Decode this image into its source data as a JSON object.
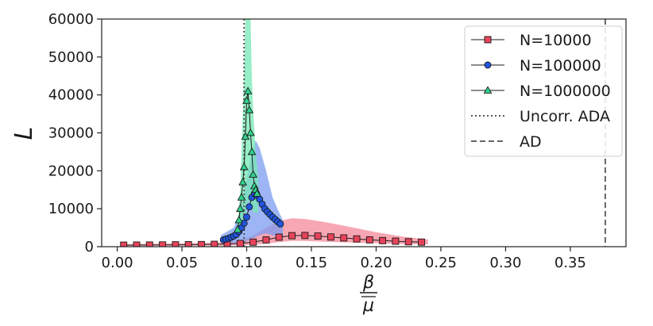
{
  "chart_data": {
    "type": "line",
    "title": "",
    "xlabel_numerator": "β",
    "xlabel_denominator": "μ",
    "ylabel": "L",
    "xlim": [
      -0.012,
      0.393
    ],
    "ylim": [
      0,
      60000
    ],
    "xticks": [
      "0.00",
      "0.05",
      "0.10",
      "0.15",
      "0.20",
      "0.25",
      "0.30",
      "0.35"
    ],
    "xtick_values": [
      0.0,
      0.05,
      0.1,
      0.15,
      0.2,
      0.25,
      0.3,
      0.35
    ],
    "yticks": [
      "0",
      "10000",
      "20000",
      "30000",
      "40000",
      "50000",
      "60000"
    ],
    "ytick_values": [
      0,
      10000,
      20000,
      30000,
      40000,
      50000,
      60000
    ],
    "grid": false,
    "legend_position": "upper-right",
    "series": [
      {
        "name": "N=10000",
        "marker": "square",
        "color": "#e8435a",
        "band_color": "#f48a9a",
        "x": [
          0.005,
          0.015,
          0.025,
          0.035,
          0.045,
          0.055,
          0.065,
          0.075,
          0.085,
          0.095,
          0.105,
          0.115,
          0.125,
          0.135,
          0.145,
          0.155,
          0.165,
          0.175,
          0.185,
          0.195,
          0.205,
          0.215,
          0.225,
          0.235
        ],
        "y": [
          400,
          420,
          440,
          460,
          490,
          520,
          560,
          620,
          700,
          850,
          1200,
          1800,
          2500,
          2900,
          2950,
          2800,
          2550,
          2300,
          2050,
          1800,
          1600,
          1450,
          1300,
          1200
        ],
        "band_x": [
          0.005,
          0.05,
          0.08,
          0.095,
          0.105,
          0.115,
          0.125,
          0.135,
          0.145,
          0.16,
          0.18,
          0.2,
          0.22,
          0.24
        ],
        "band_upper": [
          700,
          900,
          1100,
          1500,
          3000,
          5000,
          6800,
          7500,
          7300,
          6500,
          5200,
          3800,
          2700,
          1900
        ],
        "band_lower": [
          200,
          250,
          300,
          400,
          500,
          800,
          1200,
          1500,
          1500,
          1300,
          1100,
          900,
          700,
          600
        ]
      },
      {
        "name": "N=100000",
        "marker": "circle",
        "color": "#2155e0",
        "band_color": "#7c9cf0",
        "x": [
          0.082,
          0.084,
          0.086,
          0.088,
          0.09,
          0.092,
          0.094,
          0.096,
          0.098,
          0.1,
          0.102,
          0.104,
          0.106,
          0.108,
          0.11,
          0.112,
          0.114,
          0.116,
          0.118,
          0.12,
          0.122,
          0.124,
          0.126
        ],
        "y": [
          1800,
          2000,
          2200,
          2500,
          2800,
          3200,
          4000,
          5000,
          6200,
          7800,
          10500,
          13000,
          14000,
          13500,
          12500,
          11200,
          10000,
          9200,
          8500,
          7800,
          7200,
          6600,
          6000
        ],
        "band_x": [
          0.08,
          0.09,
          0.095,
          0.1,
          0.104,
          0.107,
          0.11,
          0.115,
          0.12,
          0.125,
          0.128
        ],
        "band_upper": [
          3000,
          5000,
          9000,
          18000,
          25000,
          28000,
          26000,
          20000,
          13000,
          9000,
          7000
        ],
        "band_lower": [
          1000,
          1000,
          1000,
          1500,
          2000,
          2500,
          3000,
          3500,
          3000,
          2500,
          2500
        ]
      },
      {
        "name": "N=1000000",
        "marker": "triangle",
        "color": "#2fd38c",
        "band_color": "#76e8b4",
        "x": [
          0.093,
          0.094,
          0.095,
          0.096,
          0.097,
          0.098,
          0.099,
          0.1,
          0.101,
          0.102,
          0.103,
          0.104,
          0.105,
          0.106,
          0.107,
          0.108
        ],
        "y": [
          4500,
          7000,
          10000,
          13000,
          17000,
          21000,
          29000,
          38500,
          41000,
          36000,
          30000,
          25000,
          19000,
          16000,
          15000,
          14000
        ],
        "band_x": [
          0.093,
          0.095,
          0.097,
          0.099,
          0.1,
          0.101,
          0.102,
          0.103,
          0.104,
          0.105,
          0.107,
          0.109
        ],
        "band_upper": [
          6000,
          15000,
          35000,
          60000,
          60000,
          60000,
          60000,
          60000,
          45000,
          36000,
          25000,
          18000
        ],
        "band_lower": [
          3000,
          4000,
          6000,
          8000,
          10000,
          12000,
          12000,
          11000,
          10000,
          9000,
          9000,
          9000
        ]
      }
    ],
    "reference_lines": [
      {
        "name": "Uncorr. ADA",
        "x": 0.098,
        "style": "dotted",
        "color": "#555555"
      },
      {
        "name": "AD",
        "x": 0.377,
        "style": "dashed",
        "color": "#666666"
      }
    ]
  }
}
